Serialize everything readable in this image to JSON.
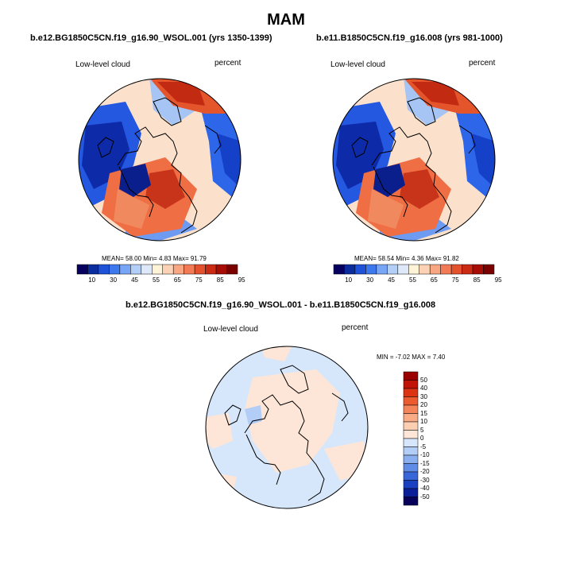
{
  "figure": {
    "title": "MAM"
  },
  "panels": [
    {
      "title": "b.e12.BG1850C5CN.f19_g16.90_WSOL.001 (yrs 1350-1399)",
      "variable": "Low-level cloud",
      "units": "percent",
      "stats": "MEAN=  58.00  Min=   4.83  Max=  91.79",
      "colorbar_labels": [
        "10",
        "30",
        "45",
        "55",
        "65",
        "75",
        "85",
        "95"
      ],
      "colorbar_colors": [
        "#08005f",
        "#0a2c9c",
        "#1e52d8",
        "#3e78ee",
        "#78a6f6",
        "#b4cff7",
        "#dde9f8",
        "#fff3d8",
        "#fcd2b4",
        "#f8a782",
        "#f27b55",
        "#e4522d",
        "#cc2b13",
        "#a80d05",
        "#7a0000"
      ]
    },
    {
      "title": "b.e11.B1850C5CN.f19_g16.008 (yrs 981-1000)",
      "variable": "Low-level cloud",
      "units": "percent",
      "stats": "MEAN=  58.54  Min=   4.36  Max=  91.82",
      "colorbar_labels": [
        "10",
        "30",
        "45",
        "55",
        "65",
        "75",
        "85",
        "95"
      ],
      "colorbar_colors": [
        "#08005f",
        "#0a2c9c",
        "#1e52d8",
        "#3e78ee",
        "#78a6f6",
        "#b4cff7",
        "#dde9f8",
        "#fff3d8",
        "#fcd2b4",
        "#f8a782",
        "#f27b55",
        "#e4522d",
        "#cc2b13",
        "#a80d05",
        "#7a0000"
      ]
    }
  ],
  "difference": {
    "title": "b.e12.BG1850C5CN.f19_g16.90_WSOL.001 - b.e11.B1850C5CN.f19_g16.008",
    "variable": "Low-level cloud",
    "units": "percent",
    "stats": "MIN =  -7.02 MAX =   7.40",
    "colorbar_labels": [
      "50",
      "40",
      "30",
      "20",
      "15",
      "10",
      "5",
      "0",
      "-5",
      "-10",
      "-15",
      "-20",
      "-30",
      "-40",
      "-50"
    ],
    "colorbar_colors": [
      "#9a0000",
      "#c11306",
      "#dc3312",
      "#ec5a30",
      "#f4845a",
      "#f9ab86",
      "#fccfb2",
      "#fde6d8",
      "#d6e6fb",
      "#b2cdf6",
      "#8aafef",
      "#5f8ce6",
      "#3866d8",
      "#1a3fc0",
      "#0a1e9a",
      "#06005a"
    ]
  }
}
